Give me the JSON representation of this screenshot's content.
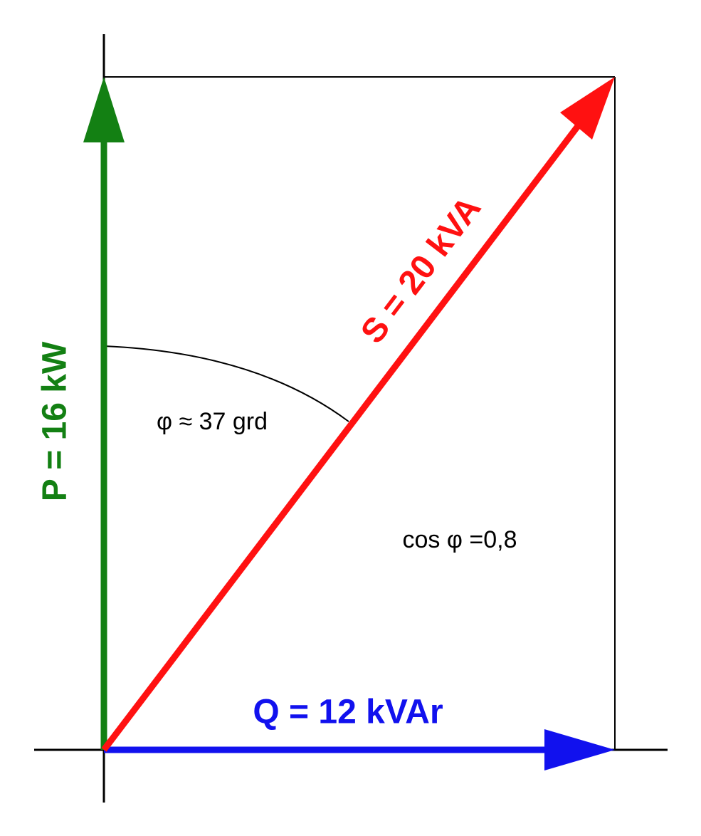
{
  "vectors": {
    "p": {
      "label": "P = 16 kW",
      "color": "#138013"
    },
    "q": {
      "label": "Q = 12 kVAr",
      "color": "#1111ee"
    },
    "s": {
      "label": "S = 20 kVA",
      "color": "#ff1111"
    }
  },
  "annotations": {
    "angle": "φ ≈ 37 grd",
    "power_factor": "cos φ =0,8"
  },
  "colors": {
    "axes": "#000000",
    "background": "#ffffff"
  }
}
